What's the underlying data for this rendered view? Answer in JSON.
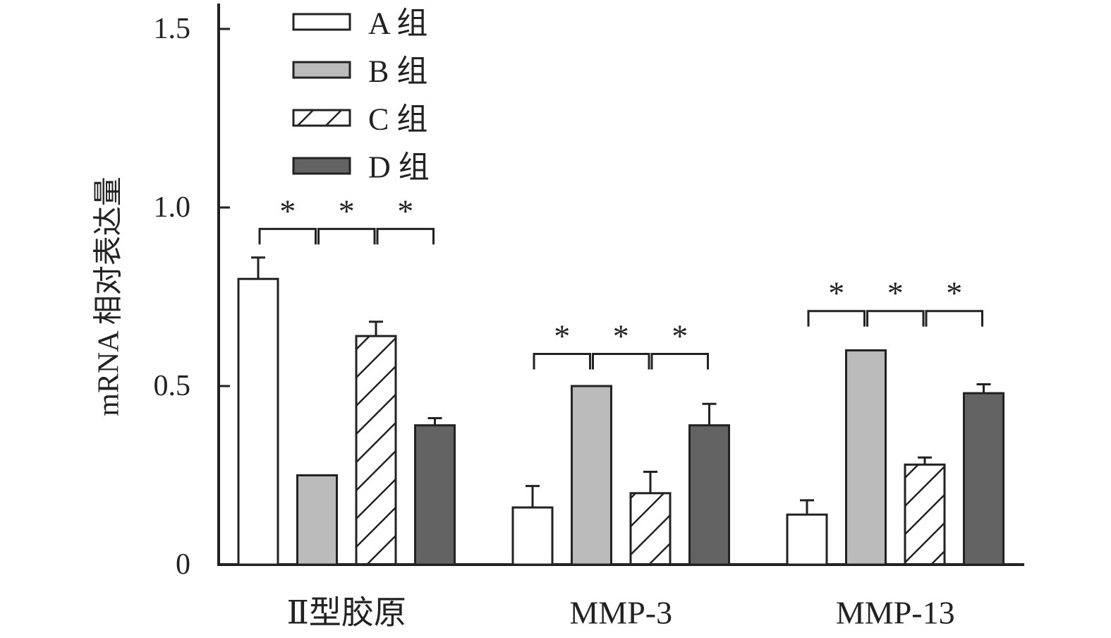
{
  "chart_data": {
    "type": "bar",
    "categories": [
      "Ⅱ型胶原",
      "MMP-3",
      "MMP-13"
    ],
    "series": [
      {
        "name": "A 组",
        "values": [
          0.8,
          0.16,
          0.14
        ],
        "errors": [
          0.06,
          0.06,
          0.04
        ],
        "fill": "#ffffff",
        "pattern": "none"
      },
      {
        "name": "B 组",
        "values": [
          0.25,
          0.5,
          0.6
        ],
        "errors": [
          0.0,
          0.0,
          0.0
        ],
        "fill": "#bbbbbb",
        "pattern": "none"
      },
      {
        "name": "C 组",
        "values": [
          0.64,
          0.2,
          0.28
        ],
        "errors": [
          0.04,
          0.06,
          0.02
        ],
        "fill": "#ffffff",
        "pattern": "diagonal-hatch"
      },
      {
        "name": "D 组",
        "values": [
          0.39,
          0.39,
          0.48
        ],
        "errors": [
          0.02,
          0.06,
          0.025
        ],
        "fill": "#636363",
        "pattern": "none"
      }
    ],
    "ylabel": "mRNA 相对表达量",
    "xlabel": "",
    "ylim": [
      0,
      1.5
    ],
    "yticks": [
      0,
      0.5,
      1.0,
      1.5
    ],
    "ytick_labels": [
      "0",
      "0.5",
      "1.0",
      "1.5"
    ],
    "grid": false,
    "legend_position": "top-left",
    "significance": [
      {
        "category": "Ⅱ型胶原",
        "pairs": [
          [
            "A 组",
            "B 组"
          ],
          [
            "B 组",
            "C 组"
          ],
          [
            "C 组",
            "D 组"
          ]
        ],
        "y": 0.94,
        "marker": "*"
      },
      {
        "category": "MMP-3",
        "pairs": [
          [
            "A 组",
            "B 组"
          ],
          [
            "B 组",
            "C 组"
          ],
          [
            "C 组",
            "D 组"
          ]
        ],
        "y": 0.59,
        "marker": "*"
      },
      {
        "category": "MMP-13",
        "pairs": [
          [
            "A 组",
            "B 组"
          ],
          [
            "B 组",
            "C 组"
          ],
          [
            "C 组",
            "D 组"
          ]
        ],
        "y": 0.71,
        "marker": "*"
      }
    ],
    "colors": {
      "axis": "#222222",
      "bar_stroke": "#222222"
    }
  }
}
